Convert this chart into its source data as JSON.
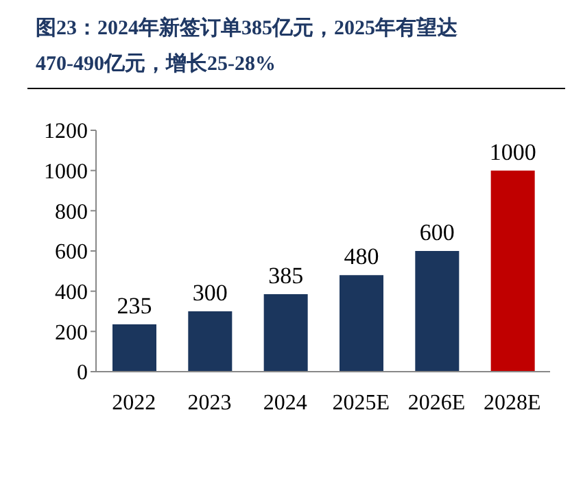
{
  "chart_data": {
    "type": "bar",
    "title": "图23：2024年新签订单385亿元，2025年有望达470-490亿元，增长25-28%",
    "categories": [
      "2022",
      "2023",
      "2024",
      "2025E",
      "2026E",
      "2028E"
    ],
    "values": [
      235,
      300,
      385,
      480,
      600,
      1000
    ],
    "colors": [
      "#1b365d",
      "#1b365d",
      "#1b365d",
      "#1b365d",
      "#1b365d",
      "#c00000"
    ],
    "ylim": [
      0,
      1200
    ],
    "yticks": [
      0,
      200,
      400,
      600,
      800,
      1000,
      1200
    ],
    "grid": false,
    "data_labels": true
  }
}
